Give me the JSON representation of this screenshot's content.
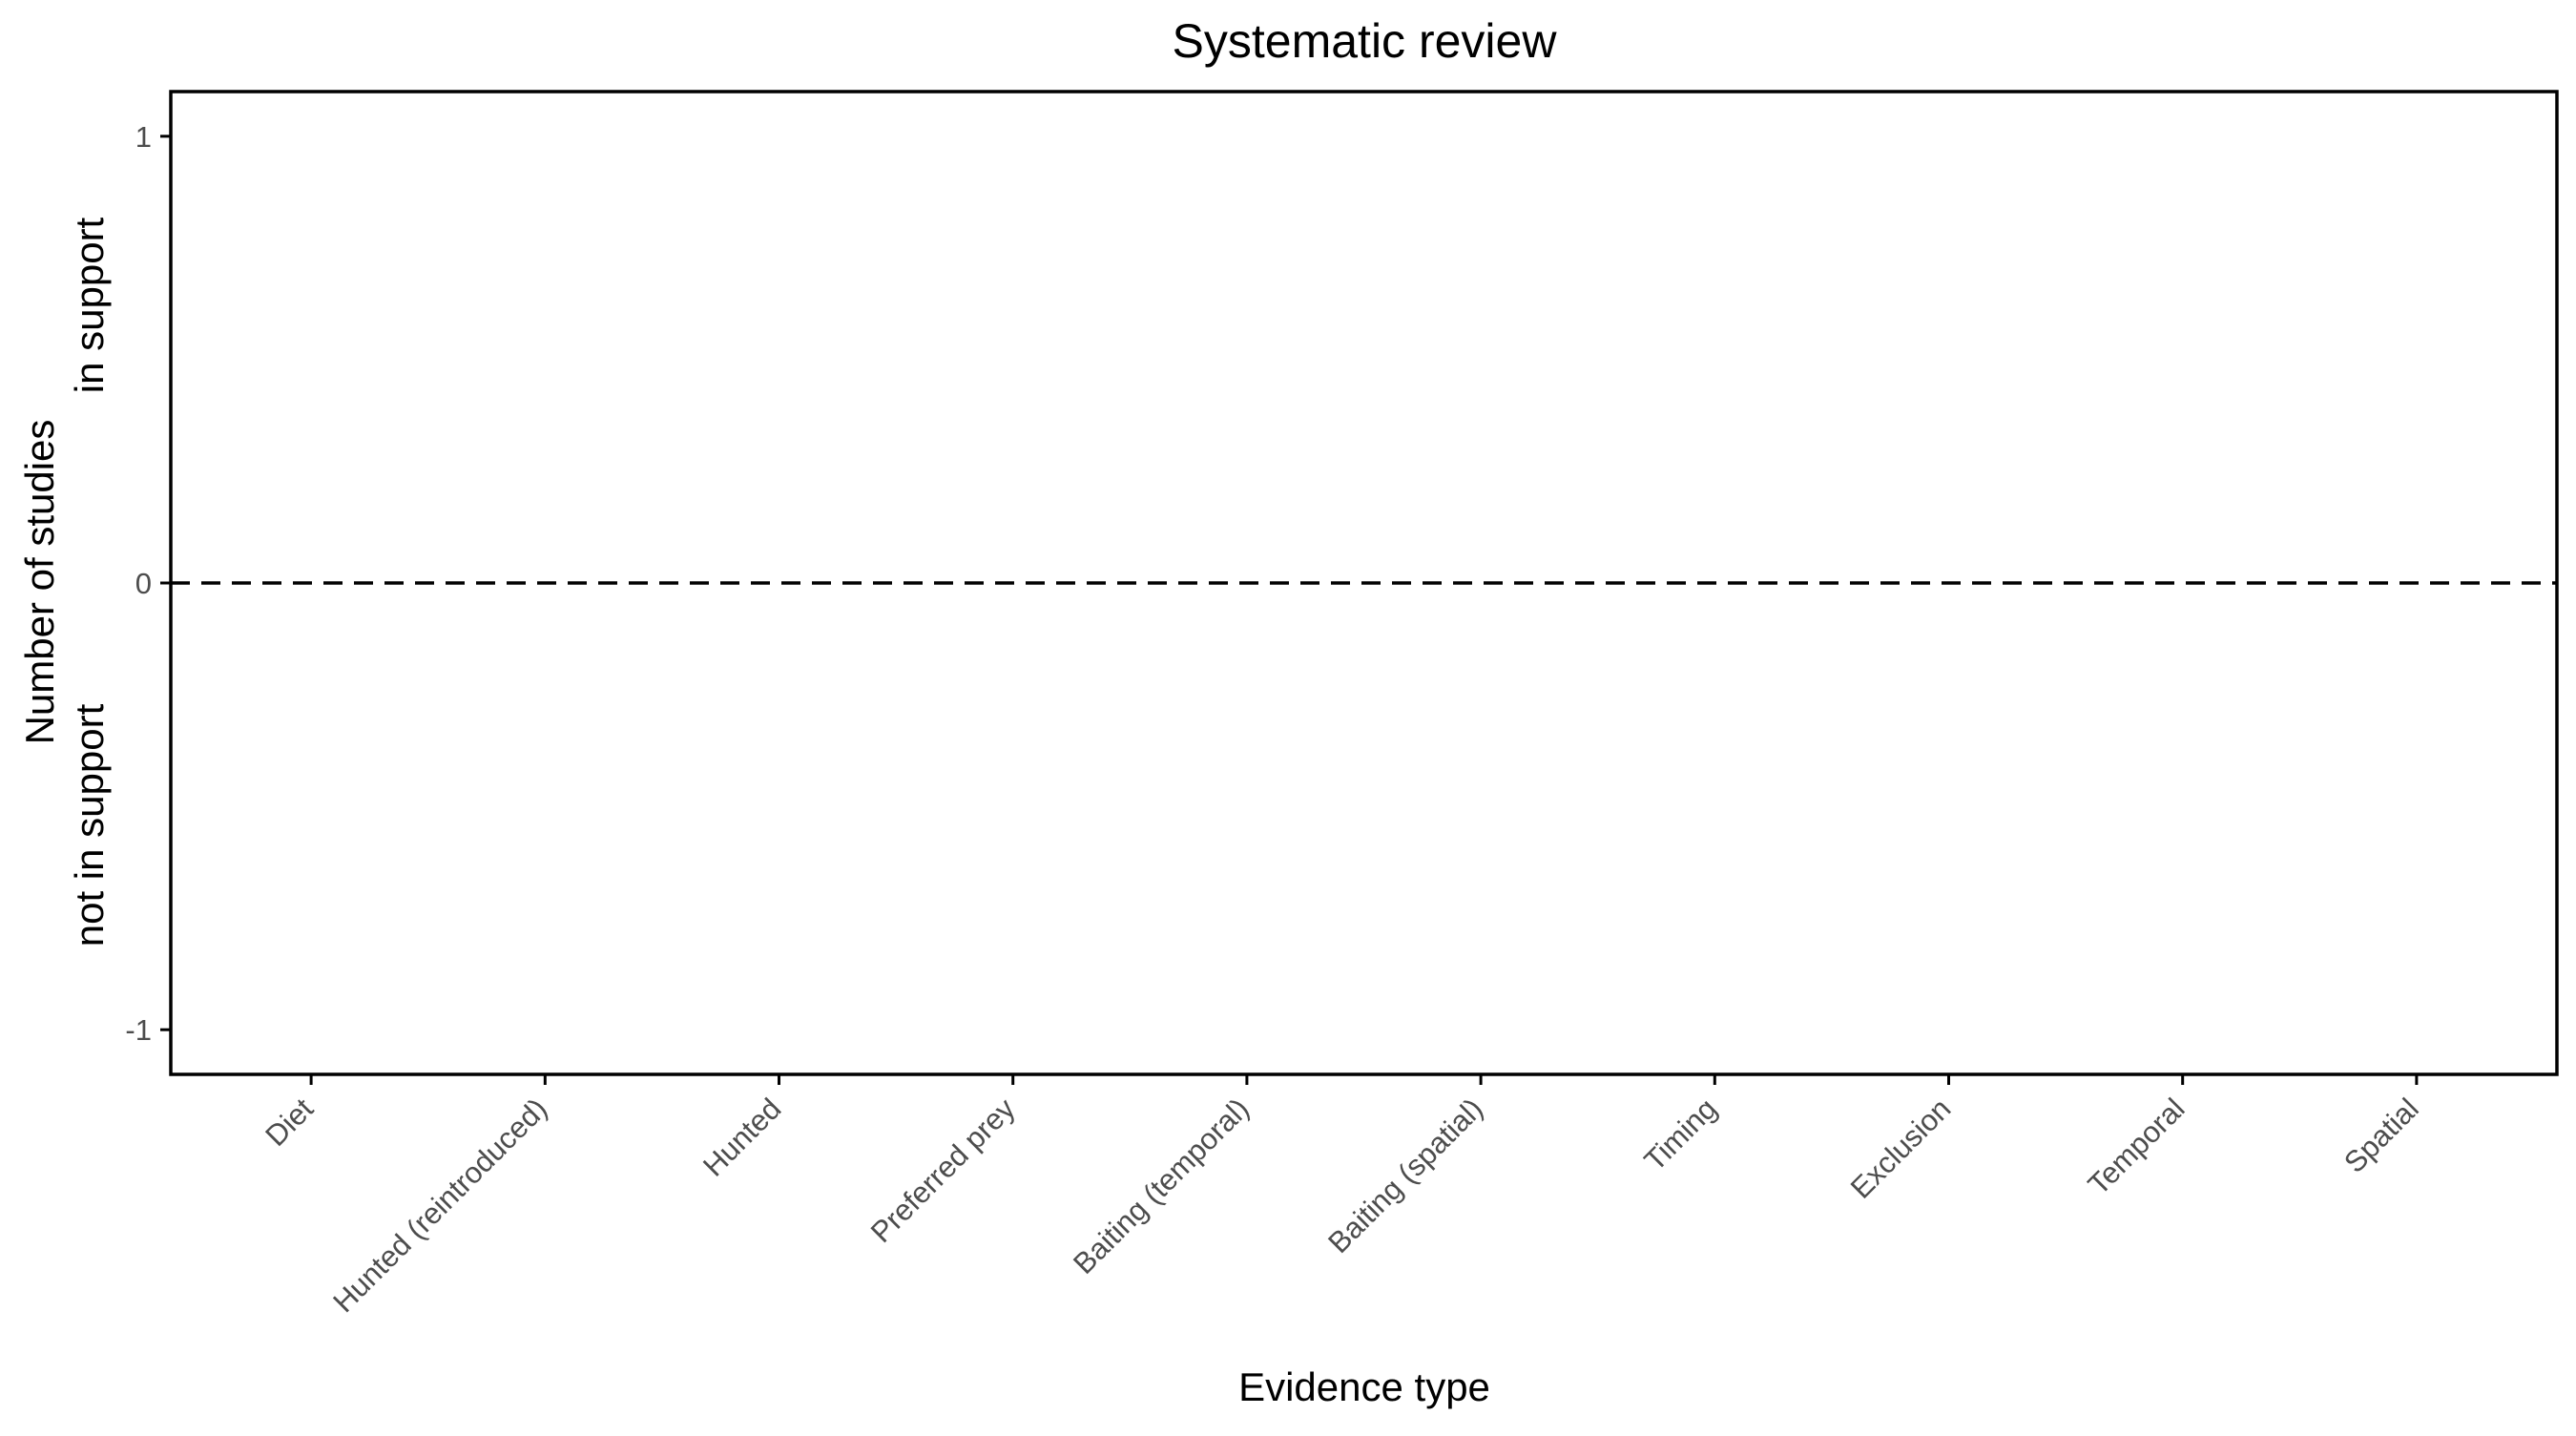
{
  "chart_data": {
    "type": "bar",
    "title": "Systematic review",
    "xlabel": "Evidence type",
    "ylabel": {
      "line1": "Number of studies",
      "upper_line": "in support",
      "lower_line": "not in support"
    },
    "categories": [
      "Diet",
      "Hunted (reintroduced)",
      "Hunted",
      "Preferred prey",
      "Baiting (temporal)",
      "Baiting (spatial)",
      "Timing",
      "Exclusion",
      "Temporal",
      "Spatial"
    ],
    "values": [
      0,
      0,
      0,
      0,
      0,
      0,
      0,
      0,
      0,
      0
    ],
    "yticks": [
      "1",
      "0",
      "-1"
    ],
    "ytick_values": [
      1,
      0,
      -1
    ],
    "ylim": [
      -1.1,
      1.1
    ],
    "reference_line": {
      "y": 0,
      "style": "dashed"
    },
    "grid": false,
    "colors": {
      "axis": "#000000",
      "tick_text": "#4d4d4d"
    }
  }
}
